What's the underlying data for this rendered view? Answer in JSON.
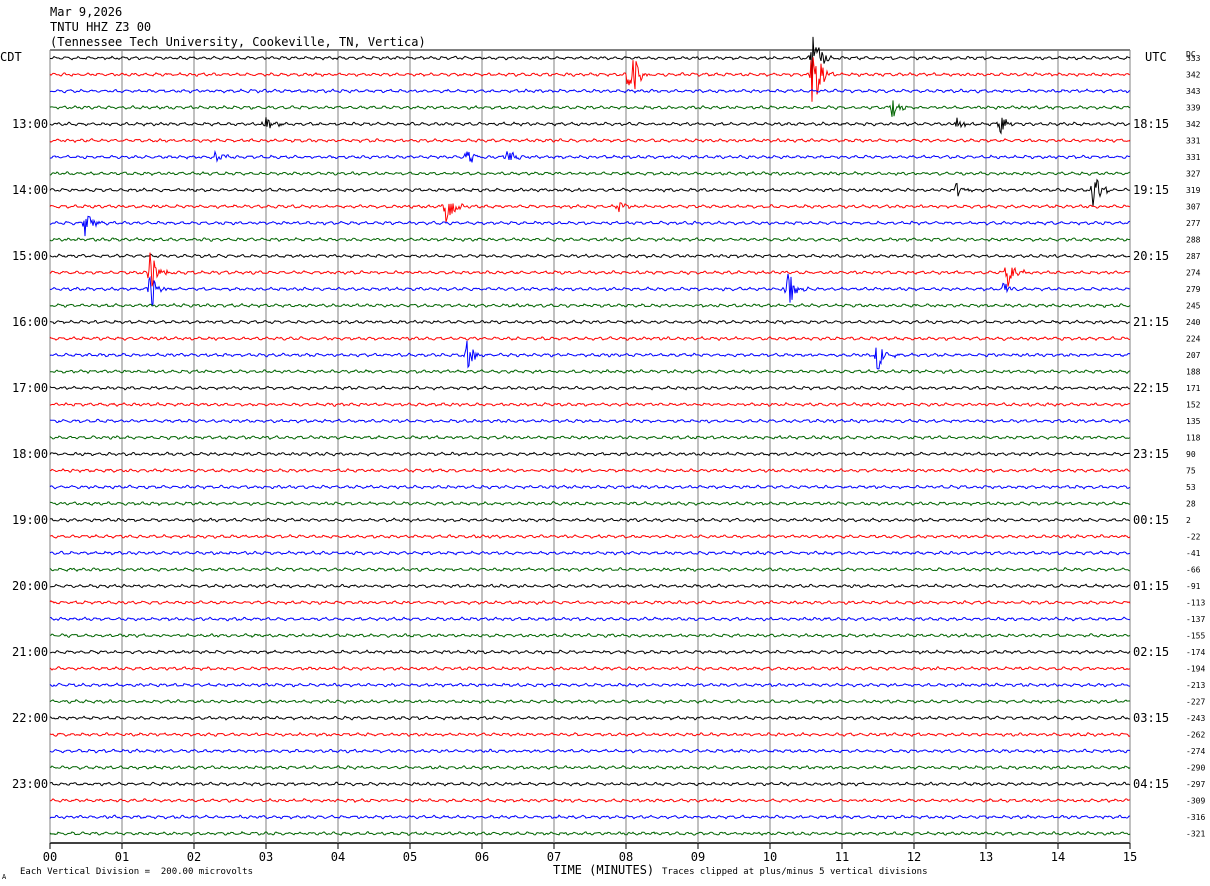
{
  "header": {
    "date": "Mar 9,2026",
    "station": "TNTU HHZ Z3 00",
    "location": "(Tennessee Tech University, Cookeville, TN, Vertica)"
  },
  "labels": {
    "left_tz": "CDT",
    "right_tz": "UTC",
    "dc": "DC",
    "xlabel": "TIME (MINUTES)",
    "scale_note": "Each Vertical Division =  200.00 microvolts",
    "clip_note": "Traces clipped at plus/minus 5 vertical divisions",
    "corner_mark": "A"
  },
  "colors": {
    "cycle": [
      "#000000",
      "#ff0000",
      "#0000ff",
      "#006400"
    ],
    "grid": "#808080"
  },
  "chart_data": {
    "type": "line",
    "description_free": true,
    "x_minutes": [
      0,
      15
    ],
    "x_ticks": [
      "00",
      "01",
      "02",
      "03",
      "04",
      "05",
      "06",
      "07",
      "08",
      "09",
      "10",
      "11",
      "12",
      "13",
      "14",
      "15"
    ],
    "trace_count": 48,
    "left_hour_labels": [
      "13:00",
      "14:00",
      "15:00",
      "16:00",
      "17:00",
      "18:00",
      "19:00",
      "20:00",
      "21:00",
      "22:00",
      "23:00"
    ],
    "right_hour_labels": [
      "18:15",
      "19:15",
      "20:15",
      "21:15",
      "22:15",
      "23:15",
      "00:15",
      "01:15",
      "02:15",
      "03:15",
      "04:15"
    ],
    "dc_values": [
      "333",
      "342",
      "343",
      "339",
      "342",
      "331",
      "331",
      "327",
      "319",
      "307",
      "277",
      "288",
      "287",
      "274",
      "279",
      "245",
      "240",
      "224",
      "207",
      "188",
      "171",
      "152",
      "135",
      "118",
      "90",
      "75",
      "53",
      "28",
      "2",
      "-22",
      "-41",
      "-66",
      "-91",
      "-113",
      "-137",
      "-155",
      "-174",
      "-194",
      "-213",
      "-227",
      "-243",
      "-262",
      "-274",
      "-290",
      "-297",
      "-309",
      "-316",
      "-321"
    ],
    "events": [
      {
        "trace": 1,
        "minute": 8.05,
        "amplitude": 5
      },
      {
        "trace": 0,
        "minute": 10.6,
        "amplitude": 5
      },
      {
        "trace": 1,
        "minute": 10.6,
        "amplitude": 5
      },
      {
        "trace": 3,
        "minute": 11.7,
        "amplitude": 1.2
      },
      {
        "trace": 4,
        "minute": 3.0,
        "amplitude": 1.2
      },
      {
        "trace": 4,
        "minute": 12.6,
        "amplitude": 1.0
      },
      {
        "trace": 4,
        "minute": 13.2,
        "amplitude": 1.2
      },
      {
        "trace": 6,
        "minute": 2.3,
        "amplitude": 0.9
      },
      {
        "trace": 6,
        "minute": 5.8,
        "amplitude": 1.0
      },
      {
        "trace": 6,
        "minute": 6.35,
        "amplitude": 1.0
      },
      {
        "trace": 8,
        "minute": 12.6,
        "amplitude": 0.9
      },
      {
        "trace": 8,
        "minute": 14.5,
        "amplitude": 3
      },
      {
        "trace": 9,
        "minute": 5.5,
        "amplitude": 3
      },
      {
        "trace": 9,
        "minute": 7.9,
        "amplitude": 0.9
      },
      {
        "trace": 10,
        "minute": 0.5,
        "amplitude": 2
      },
      {
        "trace": 13,
        "minute": 1.4,
        "amplitude": 3
      },
      {
        "trace": 13,
        "minute": 13.3,
        "amplitude": 1.8
      },
      {
        "trace": 14,
        "minute": 1.4,
        "amplitude": 3
      },
      {
        "trace": 14,
        "minute": 10.25,
        "amplitude": 3
      },
      {
        "trace": 14,
        "minute": 13.25,
        "amplitude": 1.0
      },
      {
        "trace": 18,
        "minute": 5.8,
        "amplitude": 1.8
      },
      {
        "trace": 18,
        "minute": 11.5,
        "amplitude": 2.2
      }
    ]
  }
}
